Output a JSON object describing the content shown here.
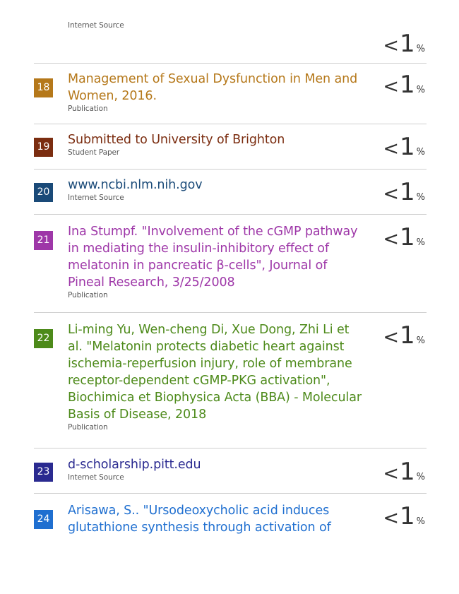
{
  "top_item": {
    "source_type": "Internet Source",
    "percent": {
      "lt": "<",
      "value": "1",
      "sign": "%"
    }
  },
  "items": [
    {
      "number": "18",
      "title": "Management of Sexual Dysfunction in Men and Women, 2016.",
      "source_type": "Publication",
      "color": "#b5781a",
      "percent": {
        "lt": "<",
        "value": "1",
        "sign": "%"
      }
    },
    {
      "number": "19",
      "title": "Submitted to University of Brighton",
      "source_type": "Student Paper",
      "color": "#7b2d10",
      "percent": {
        "lt": "<",
        "value": "1",
        "sign": "%"
      }
    },
    {
      "number": "20",
      "title": "www.ncbi.nlm.nih.gov",
      "source_type": "Internet Source",
      "color": "#1a4a78",
      "percent": {
        "lt": "<",
        "value": "1",
        "sign": "%"
      }
    },
    {
      "number": "21",
      "title": "Ina Stumpf. \"Involvement of the cGMP pathway in mediating the insulin-inhibitory effect of melatonin in pancreatic β-cells\", Journal of Pineal Research, 3/25/2008",
      "source_type": "Publication",
      "color": "#9e37a8",
      "percent": {
        "lt": "<",
        "value": "1",
        "sign": "%"
      }
    },
    {
      "number": "22",
      "title": "Li-ming Yu, Wen-cheng Di, Xue Dong, Zhi Li et al. \"Melatonin protects diabetic heart against ischemia-reperfusion injury, role of membrane receptor-dependent cGMP-PKG activation\", Biochimica et Biophysica Acta (BBA) - Molecular Basis of Disease, 2018",
      "source_type": "Publication",
      "color": "#4d8a1a",
      "percent": {
        "lt": "<",
        "value": "1",
        "sign": "%"
      }
    },
    {
      "number": "23",
      "title": "d-scholarship.pitt.edu",
      "source_type": "Internet Source",
      "color": "#2a2a90",
      "percent": {
        "lt": "<",
        "value": "1",
        "sign": "%"
      }
    },
    {
      "number": "24",
      "title": "Arisawa, S.. \"Ursodeoxycholic acid induces glutathione synthesis through activation of",
      "source_type": "",
      "color": "#1f6fd0",
      "percent": {
        "lt": "<",
        "value": "1",
        "sign": "%"
      }
    }
  ]
}
